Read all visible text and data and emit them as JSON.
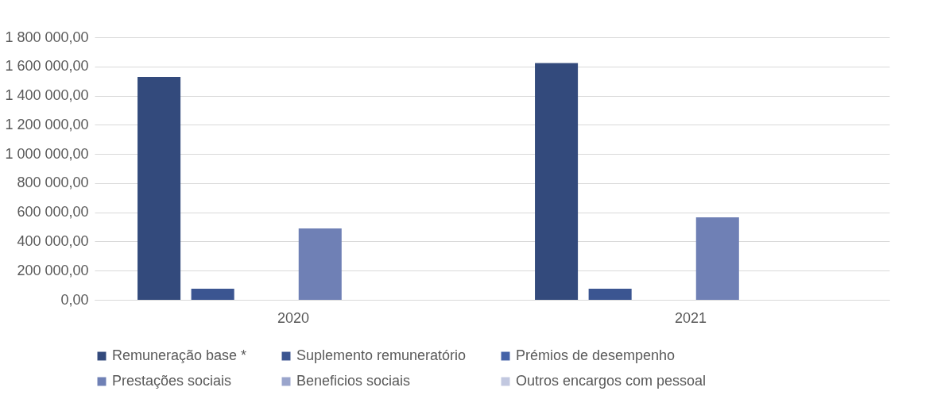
{
  "chart_data": {
    "type": "bar",
    "categories": [
      "2020",
      "2021"
    ],
    "series": [
      {
        "name": "Remuneração base *",
        "color": "#334a7c",
        "values": [
          1528000,
          1623000
        ]
      },
      {
        "name": "Suplemento remuneratório",
        "color": "#3b5591",
        "values": [
          76000,
          76000
        ]
      },
      {
        "name": "Prémios de desempenho",
        "color": "#4563a8",
        "values": [
          0,
          0
        ]
      },
      {
        "name": "Prestações sociais",
        "color": "#6f80b5",
        "values": [
          489000,
          565000
        ]
      },
      {
        "name": "Beneficios sociais",
        "color": "#9aa5cc",
        "values": [
          0,
          0
        ]
      },
      {
        "name": "Outros encargos com pessoal",
        "color": "#c2c8e0",
        "values": [
          null,
          null
        ]
      }
    ],
    "ylim": [
      0,
      1800000
    ],
    "yticks": [
      {
        "value": 0,
        "label": "0,00"
      },
      {
        "value": 200000,
        "label": "200 000,00"
      },
      {
        "value": 400000,
        "label": "400 000,00"
      },
      {
        "value": 600000,
        "label": "600 000,00"
      },
      {
        "value": 800000,
        "label": "800 000,00"
      },
      {
        "value": 1000000,
        "label": "1 000 000,00"
      },
      {
        "value": 1200000,
        "label": "1 200 000,00"
      },
      {
        "value": 1400000,
        "label": "1 400 000,00"
      },
      {
        "value": 1600000,
        "label": "1 600 000,00"
      },
      {
        "value": 1800000,
        "label": "1 800 000,00"
      }
    ],
    "grid": "y",
    "legend": "bottom"
  }
}
